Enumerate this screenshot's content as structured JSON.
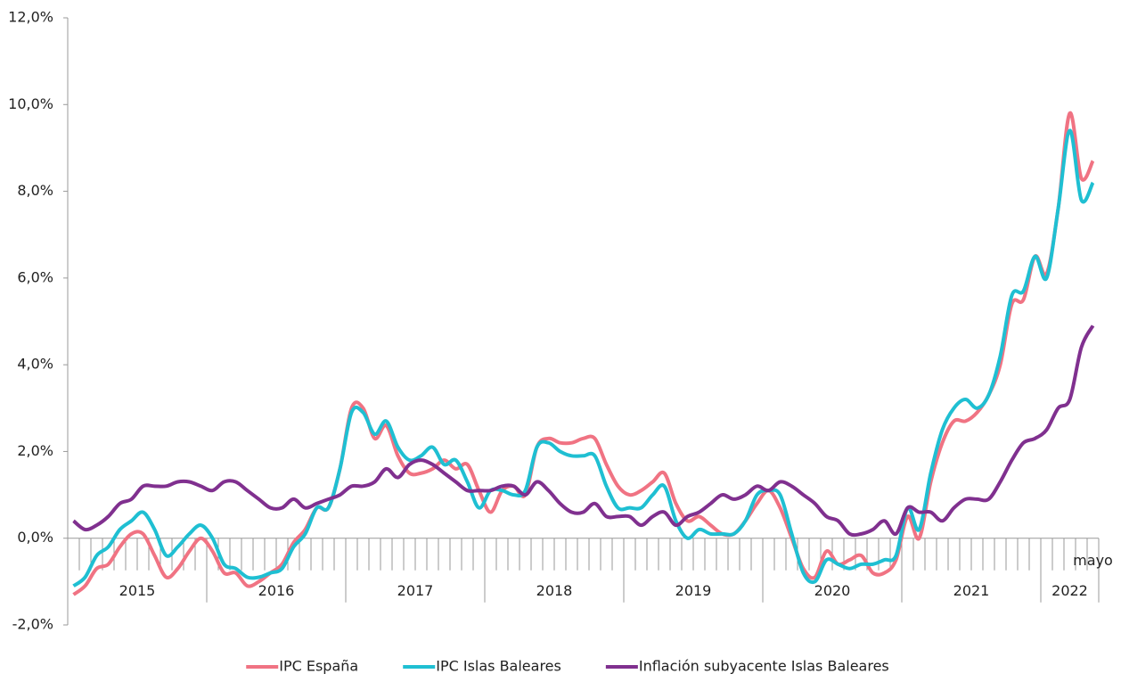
{
  "chart_data": {
    "type": "line",
    "categories": [
      null,
      null,
      null,
      null,
      null,
      null,
      null,
      null,
      null,
      null,
      null,
      null,
      null,
      null,
      null,
      null,
      null,
      null,
      null,
      null,
      null,
      null,
      null,
      null,
      null,
      null,
      null,
      null,
      null,
      null,
      null,
      null,
      null,
      null,
      null,
      null,
      null,
      null,
      null,
      null,
      null,
      null,
      null,
      null,
      null,
      null,
      null,
      null,
      null,
      null,
      null,
      null,
      null,
      null,
      null,
      null,
      null,
      null,
      null,
      null,
      null,
      null,
      null,
      null,
      null,
      null,
      null,
      null,
      null,
      null,
      null,
      null,
      null,
      null,
      null,
      null,
      null,
      null,
      null,
      null,
      null,
      null,
      null,
      null,
      null,
      null,
      null,
      null,
      "mayo"
    ],
    "groups": [
      "2015",
      "2016",
      "2017",
      "2018",
      "2019",
      "2020",
      "2021",
      "2022"
    ],
    "ylim": [
      -2,
      12
    ],
    "yticks": [
      {
        "value": -2,
        "label": "-2,0%"
      },
      {
        "value": 0,
        "label": "0,0%"
      },
      {
        "value": 2,
        "label": "2,0%"
      },
      {
        "value": 4,
        "label": "4,0%"
      },
      {
        "value": 6,
        "label": "6,0%"
      },
      {
        "value": 8,
        "label": "8,0%"
      },
      {
        "value": 10,
        "label": "10,0%"
      },
      {
        "value": 12,
        "label": "12,0%"
      }
    ],
    "series": [
      {
        "name": "IPC España",
        "color": "#f07383",
        "values": [
          -1.3,
          -1.1,
          -0.7,
          -0.6,
          -0.2,
          0.1,
          0.1,
          -0.4,
          -0.9,
          -0.7,
          -0.3,
          0.0,
          -0.3,
          -0.8,
          -0.8,
          -1.1,
          -1.0,
          -0.8,
          -0.6,
          -0.1,
          0.2,
          0.7,
          0.7,
          1.6,
          3.0,
          3.0,
          2.3,
          2.6,
          1.9,
          1.5,
          1.5,
          1.6,
          1.8,
          1.6,
          1.7,
          1.1,
          0.6,
          1.1,
          1.2,
          1.0,
          2.1,
          2.3,
          2.2,
          2.2,
          2.3,
          2.3,
          1.7,
          1.2,
          1.0,
          1.1,
          1.3,
          1.5,
          0.8,
          0.4,
          0.5,
          0.3,
          0.1,
          0.1,
          0.4,
          0.8,
          1.1,
          0.7,
          0.0,
          -0.7,
          -0.9,
          -0.3,
          -0.6,
          -0.5,
          -0.4,
          -0.8,
          -0.8,
          -0.5,
          0.5,
          0.0,
          1.3,
          2.2,
          2.7,
          2.7,
          2.9,
          3.3,
          4.0,
          5.4,
          5.5,
          6.5,
          6.1,
          7.6,
          9.8,
          8.3,
          8.7
        ]
      },
      {
        "name": "IPC Islas Baleares",
        "color": "#1fbfd2",
        "values": [
          -1.1,
          -0.9,
          -0.4,
          -0.2,
          0.2,
          0.4,
          0.6,
          0.2,
          -0.4,
          -0.2,
          0.1,
          0.3,
          0.0,
          -0.6,
          -0.7,
          -0.9,
          -0.9,
          -0.8,
          -0.7,
          -0.2,
          0.1,
          0.7,
          0.7,
          1.6,
          2.9,
          2.9,
          2.4,
          2.7,
          2.1,
          1.8,
          1.9,
          2.1,
          1.7,
          1.8,
          1.3,
          0.7,
          1.1,
          1.1,
          1.0,
          1.1,
          2.1,
          2.2,
          2.0,
          1.9,
          1.9,
          1.9,
          1.2,
          0.7,
          0.7,
          0.7,
          1.0,
          1.2,
          0.4,
          0.0,
          0.2,
          0.1,
          0.1,
          0.1,
          0.4,
          1.0,
          1.1,
          1.0,
          0.1,
          -0.8,
          -1.0,
          -0.5,
          -0.6,
          -0.7,
          -0.6,
          -0.6,
          -0.5,
          -0.4,
          0.7,
          0.2,
          1.5,
          2.5,
          3.0,
          3.2,
          3.0,
          3.3,
          4.2,
          5.6,
          5.7,
          6.5,
          6.0,
          7.6,
          9.4,
          7.8,
          8.2
        ]
      },
      {
        "name": "Inflación subyacente Islas Baleares",
        "color": "#80308f",
        "values": [
          0.4,
          0.2,
          0.3,
          0.5,
          0.8,
          0.9,
          1.2,
          1.2,
          1.2,
          1.3,
          1.3,
          1.2,
          1.1,
          1.3,
          1.3,
          1.1,
          0.9,
          0.7,
          0.7,
          0.9,
          0.7,
          0.8,
          0.9,
          1.0,
          1.2,
          1.2,
          1.3,
          1.6,
          1.4,
          1.7,
          1.8,
          1.7,
          1.5,
          1.3,
          1.1,
          1.1,
          1.1,
          1.2,
          1.2,
          1.0,
          1.3,
          1.1,
          0.8,
          0.6,
          0.6,
          0.8,
          0.5,
          0.5,
          0.5,
          0.3,
          0.5,
          0.6,
          0.3,
          0.5,
          0.6,
          0.8,
          1.0,
          0.9,
          1.0,
          1.2,
          1.1,
          1.3,
          1.2,
          1.0,
          0.8,
          0.5,
          0.4,
          0.1,
          0.1,
          0.2,
          0.4,
          0.1,
          0.7,
          0.6,
          0.6,
          0.4,
          0.7,
          0.9,
          0.9,
          0.9,
          1.3,
          1.8,
          2.2,
          2.3,
          2.5,
          3.0,
          3.2,
          4.4,
          4.9
        ]
      }
    ]
  }
}
